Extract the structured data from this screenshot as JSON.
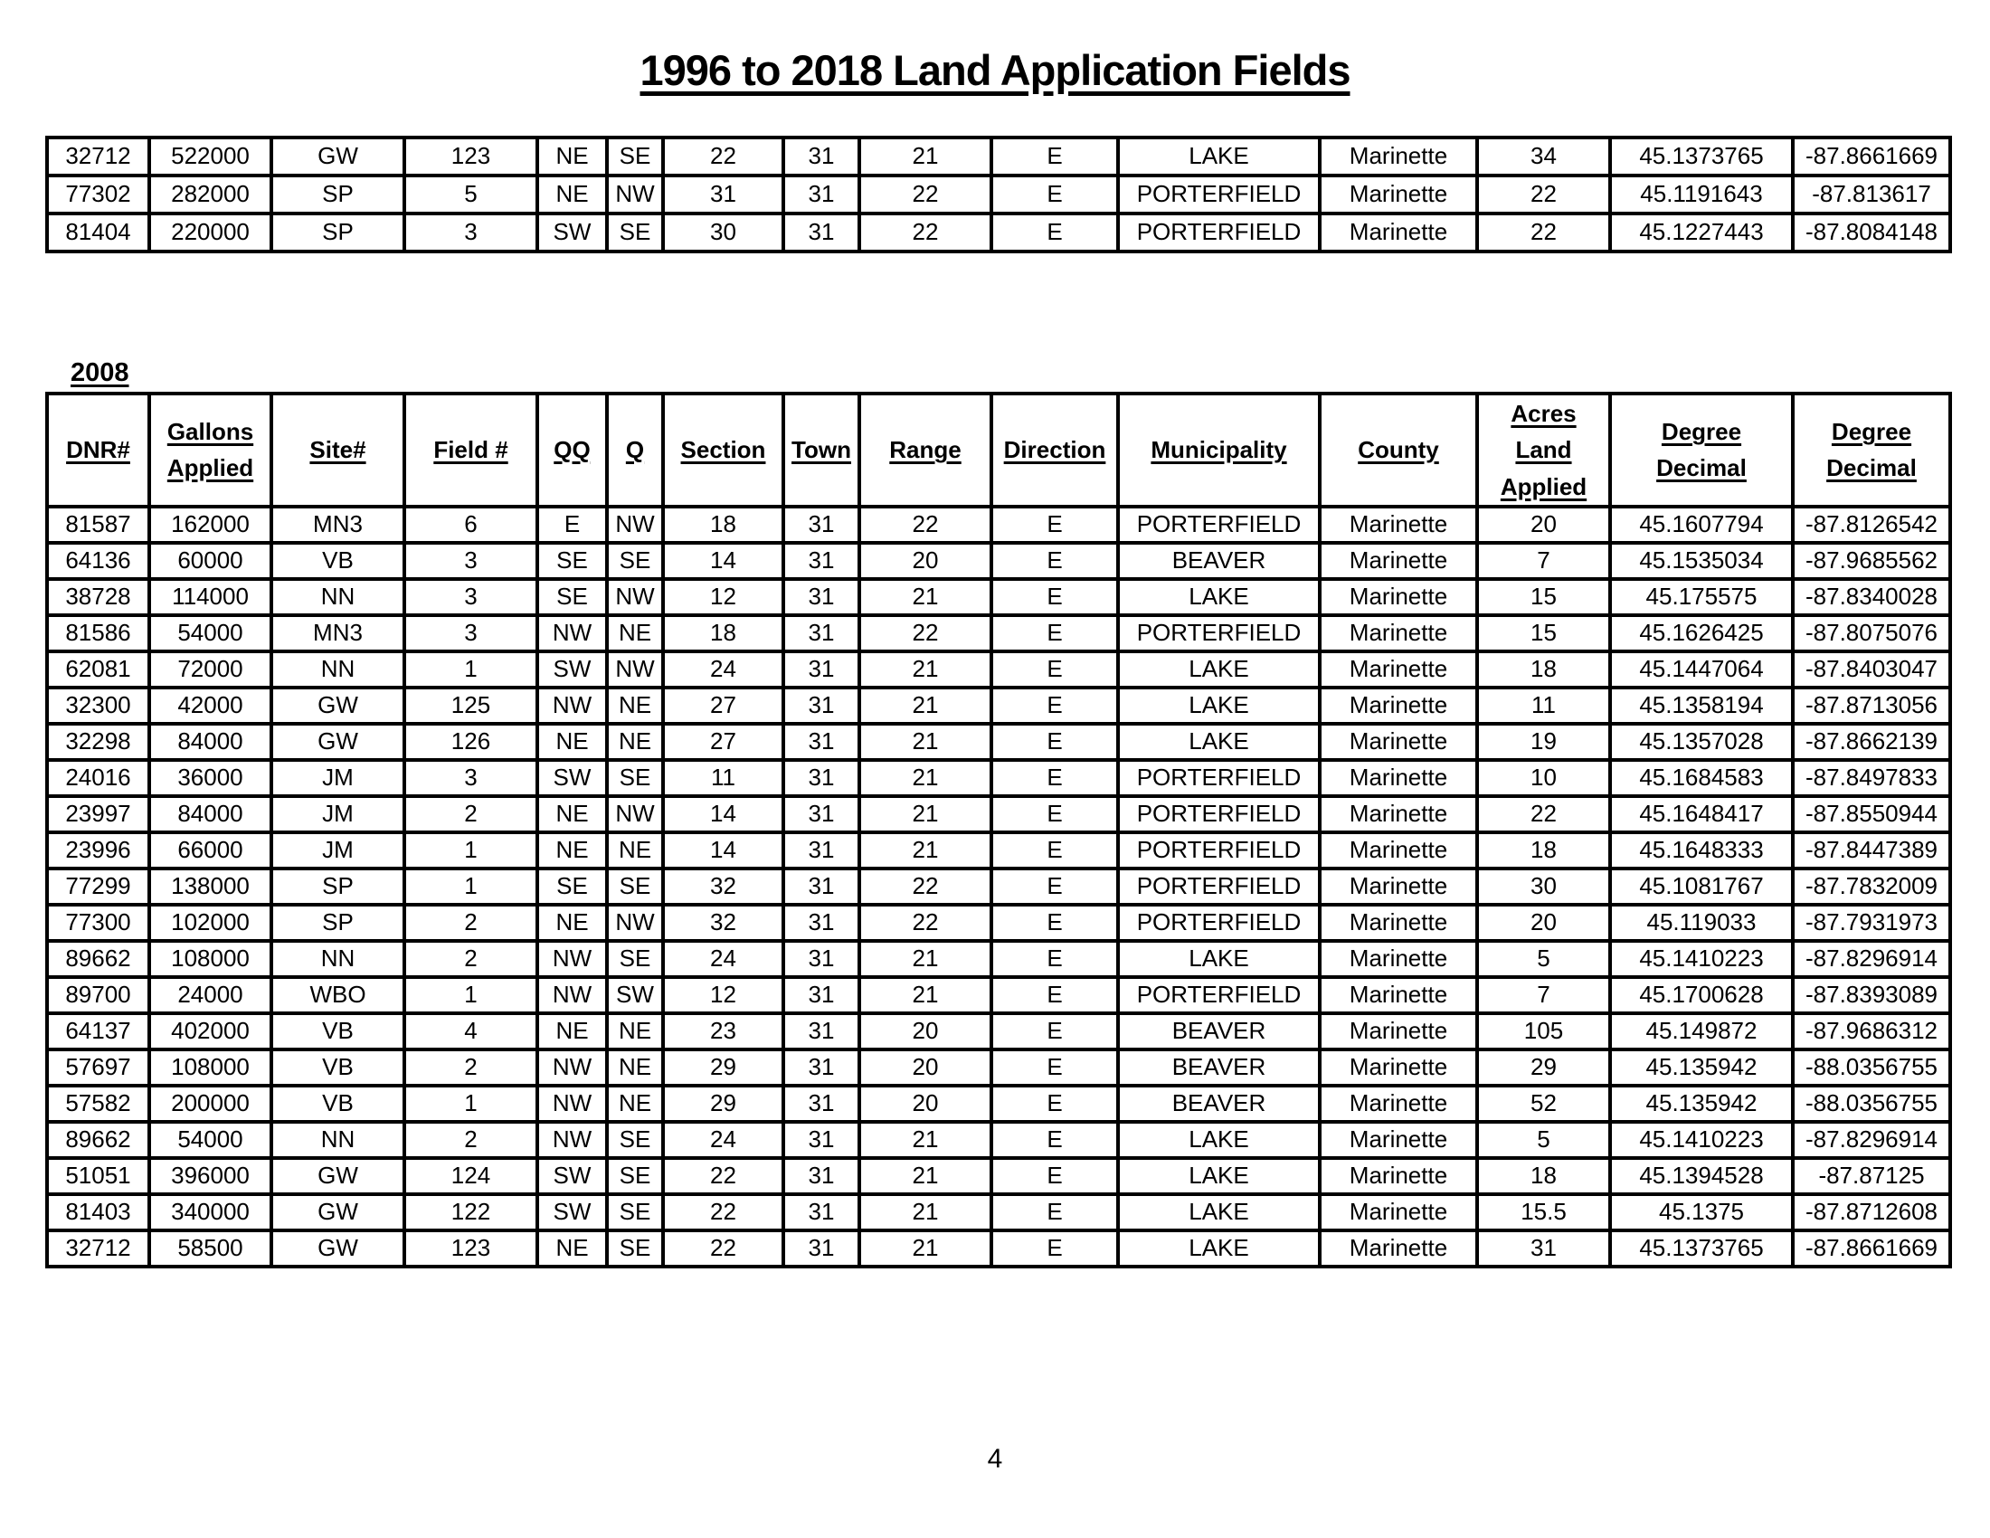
{
  "page": {
    "title": "1996 to 2018 Land Application Fields",
    "year_label": "2008",
    "page_number": "4"
  },
  "continuation_table": {
    "rows": [
      [
        "32712",
        "522000",
        "GW",
        "123",
        "NE",
        "SE",
        "22",
        "31",
        "21",
        "E",
        "LAKE",
        "Marinette",
        "34",
        "45.1373765",
        "-87.8661669"
      ],
      [
        "77302",
        "282000",
        "SP",
        "5",
        "NE",
        "NW",
        "31",
        "31",
        "22",
        "E",
        "PORTERFIELD",
        "Marinette",
        "22",
        "45.1191643",
        "-87.813617"
      ],
      [
        "81404",
        "220000",
        "SP",
        "3",
        "SW",
        "SE",
        "30",
        "31",
        "22",
        "E",
        "PORTERFIELD",
        "Marinette",
        "22",
        "45.1227443",
        "-87.8084148"
      ]
    ]
  },
  "main_table": {
    "headers": [
      "DNR#",
      "Gallons\nApplied",
      "Site#",
      "Field #",
      "QQ",
      "Q",
      "Section",
      "Town",
      "Range",
      "Direction",
      "Municipality",
      "County",
      "Acres Land\nApplied",
      "Degree\nDecimal",
      "Degree\nDecimal"
    ],
    "rows": [
      [
        "81587",
        "162000",
        "MN3",
        "6",
        "E",
        "NW",
        "18",
        "31",
        "22",
        "E",
        "PORTERFIELD",
        "Marinette",
        "20",
        "45.1607794",
        "-87.8126542"
      ],
      [
        "64136",
        "60000",
        "VB",
        "3",
        "SE",
        "SE",
        "14",
        "31",
        "20",
        "E",
        "BEAVER",
        "Marinette",
        "7",
        "45.1535034",
        "-87.9685562"
      ],
      [
        "38728",
        "114000",
        "NN",
        "3",
        "SE",
        "NW",
        "12",
        "31",
        "21",
        "E",
        "LAKE",
        "Marinette",
        "15",
        "45.175575",
        "-87.8340028"
      ],
      [
        "81586",
        "54000",
        "MN3",
        "3",
        "NW",
        "NE",
        "18",
        "31",
        "22",
        "E",
        "PORTERFIELD",
        "Marinette",
        "15",
        "45.1626425",
        "-87.8075076"
      ],
      [
        "62081",
        "72000",
        "NN",
        "1",
        "SW",
        "NW",
        "24",
        "31",
        "21",
        "E",
        "LAKE",
        "Marinette",
        "18",
        "45.1447064",
        "-87.8403047"
      ],
      [
        "32300",
        "42000",
        "GW",
        "125",
        "NW",
        "NE",
        "27",
        "31",
        "21",
        "E",
        "LAKE",
        "Marinette",
        "11",
        "45.1358194",
        "-87.8713056"
      ],
      [
        "32298",
        "84000",
        "GW",
        "126",
        "NE",
        "NE",
        "27",
        "31",
        "21",
        "E",
        "LAKE",
        "Marinette",
        "19",
        "45.1357028",
        "-87.8662139"
      ],
      [
        "24016",
        "36000",
        "JM",
        "3",
        "SW",
        "SE",
        "11",
        "31",
        "21",
        "E",
        "PORTERFIELD",
        "Marinette",
        "10",
        "45.1684583",
        "-87.8497833"
      ],
      [
        "23997",
        "84000",
        "JM",
        "2",
        "NE",
        "NW",
        "14",
        "31",
        "21",
        "E",
        "PORTERFIELD",
        "Marinette",
        "22",
        "45.1648417",
        "-87.8550944"
      ],
      [
        "23996",
        "66000",
        "JM",
        "1",
        "NE",
        "NE",
        "14",
        "31",
        "21",
        "E",
        "PORTERFIELD",
        "Marinette",
        "18",
        "45.1648333",
        "-87.8447389"
      ],
      [
        "77299",
        "138000",
        "SP",
        "1",
        "SE",
        "SE",
        "32",
        "31",
        "22",
        "E",
        "PORTERFIELD",
        "Marinette",
        "30",
        "45.1081767",
        "-87.7832009"
      ],
      [
        "77300",
        "102000",
        "SP",
        "2",
        "NE",
        "NW",
        "32",
        "31",
        "22",
        "E",
        "PORTERFIELD",
        "Marinette",
        "20",
        "45.119033",
        "-87.7931973"
      ],
      [
        "89662",
        "108000",
        "NN",
        "2",
        "NW",
        "SE",
        "24",
        "31",
        "21",
        "E",
        "LAKE",
        "Marinette",
        "5",
        "45.1410223",
        "-87.8296914"
      ],
      [
        "89700",
        "24000",
        "WBO",
        "1",
        "NW",
        "SW",
        "12",
        "31",
        "21",
        "E",
        "PORTERFIELD",
        "Marinette",
        "7",
        "45.1700628",
        "-87.8393089"
      ],
      [
        "64137",
        "402000",
        "VB",
        "4",
        "NE",
        "NE",
        "23",
        "31",
        "20",
        "E",
        "BEAVER",
        "Marinette",
        "105",
        "45.149872",
        "-87.9686312"
      ],
      [
        "57697",
        "108000",
        "VB",
        "2",
        "NW",
        "NE",
        "29",
        "31",
        "20",
        "E",
        "BEAVER",
        "Marinette",
        "29",
        "45.135942",
        "-88.0356755"
      ],
      [
        "57582",
        "200000",
        "VB",
        "1",
        "NW",
        "NE",
        "29",
        "31",
        "20",
        "E",
        "BEAVER",
        "Marinette",
        "52",
        "45.135942",
        "-88.0356755"
      ],
      [
        "89662",
        "54000",
        "NN",
        "2",
        "NW",
        "SE",
        "24",
        "31",
        "21",
        "E",
        "LAKE",
        "Marinette",
        "5",
        "45.1410223",
        "-87.8296914"
      ],
      [
        "51051",
        "396000",
        "GW",
        "124",
        "SW",
        "SE",
        "22",
        "31",
        "21",
        "E",
        "LAKE",
        "Marinette",
        "18",
        "45.1394528",
        "-87.87125"
      ],
      [
        "81403",
        "340000",
        "GW",
        "122",
        "SW",
        "SE",
        "22",
        "31",
        "21",
        "E",
        "LAKE",
        "Marinette",
        "15.5",
        "45.1375",
        "-87.8712608"
      ],
      [
        "32712",
        "58500",
        "GW",
        "123",
        "NE",
        "SE",
        "22",
        "31",
        "21",
        "E",
        "LAKE",
        "Marinette",
        "31",
        "45.1373765",
        "-87.8661669"
      ]
    ]
  }
}
